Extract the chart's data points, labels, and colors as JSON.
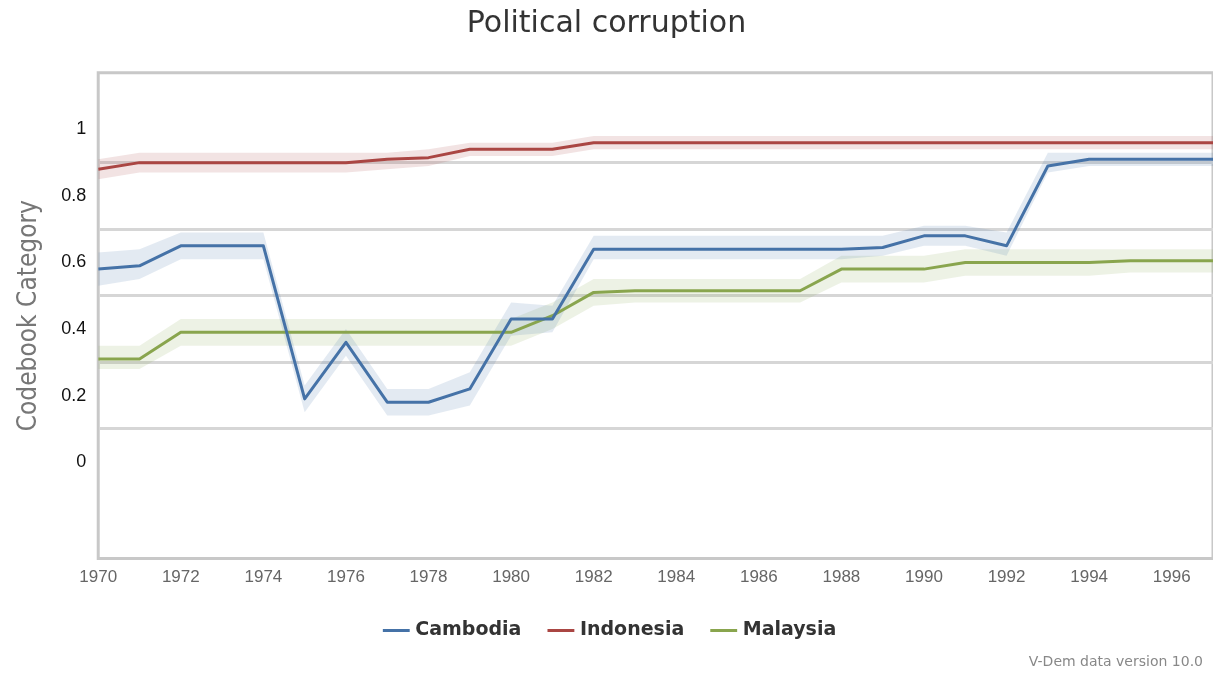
{
  "chart_data": {
    "type": "line",
    "title": "Political corruption",
    "ylabel": "Codebook Category",
    "annotations": [
      "V-Dem data version 10.0"
    ],
    "x": [
      1970,
      1971,
      1972,
      1973,
      1974,
      1975,
      1976,
      1977,
      1978,
      1979,
      1980,
      1981,
      1982,
      1983,
      1984,
      1985,
      1986,
      1987,
      1988,
      1989,
      1990,
      1991,
      1992,
      1993,
      1994,
      1995,
      1996,
      1997
    ],
    "xlim": [
      1970,
      1997
    ],
    "xticks": [
      1970,
      1972,
      1974,
      1976,
      1978,
      1980,
      1982,
      1984,
      1986,
      1988,
      1990,
      1992,
      1994,
      1996
    ],
    "ylim": [
      -0.29,
      1.17
    ],
    "yticks": [
      0,
      {
        "value": 0.1,
        "label": null
      },
      0.2,
      {
        "value": 0.3,
        "label": null
      },
      0.4,
      {
        "value": 0.5,
        "label": null
      },
      0.6,
      {
        "value": 0.7,
        "label": null
      },
      0.8,
      {
        "value": 0.9,
        "label": null
      },
      1
    ],
    "grid": "y",
    "legend": "bottom",
    "marker": "none",
    "line_style": "solid",
    "series": [
      {
        "name": "Cambodia",
        "color": "#4572a7",
        "values": [
          0.58,
          0.59,
          0.65,
          0.65,
          0.65,
          0.19,
          0.36,
          0.18,
          0.18,
          0.22,
          0.43,
          0.43,
          0.64,
          0.64,
          0.64,
          0.64,
          0.64,
          0.64,
          0.64,
          0.645,
          0.68,
          0.68,
          0.65,
          0.89,
          0.91,
          0.91,
          0.91,
          0.91
        ],
        "lower": [
          0.53,
          0.55,
          0.61,
          0.61,
          0.61,
          0.15,
          0.32,
          0.14,
          0.14,
          0.17,
          0.38,
          0.39,
          0.61,
          0.61,
          0.61,
          0.61,
          0.61,
          0.61,
          0.61,
          0.62,
          0.65,
          0.65,
          0.62,
          0.87,
          0.89,
          0.89,
          0.89,
          0.89
        ],
        "upper": [
          0.63,
          0.64,
          0.69,
          0.69,
          0.69,
          0.23,
          0.4,
          0.22,
          0.22,
          0.27,
          0.48,
          0.47,
          0.68,
          0.68,
          0.68,
          0.68,
          0.68,
          0.68,
          0.68,
          0.68,
          0.71,
          0.71,
          0.69,
          0.93,
          0.93,
          0.93,
          0.93,
          0.93
        ]
      },
      {
        "name": "Indonesia",
        "color": "#aa4643",
        "values": [
          0.88,
          0.9,
          0.9,
          0.9,
          0.9,
          0.9,
          0.9,
          0.91,
          0.915,
          0.94,
          0.94,
          0.94,
          0.96,
          0.96,
          0.96,
          0.96,
          0.96,
          0.96,
          0.96,
          0.96,
          0.96,
          0.96,
          0.96,
          0.96,
          0.96,
          0.96,
          0.96,
          0.96
        ],
        "lower": [
          0.85,
          0.87,
          0.87,
          0.87,
          0.87,
          0.87,
          0.87,
          0.88,
          0.89,
          0.92,
          0.92,
          0.92,
          0.94,
          0.94,
          0.94,
          0.94,
          0.94,
          0.94,
          0.94,
          0.94,
          0.94,
          0.94,
          0.94,
          0.94,
          0.94,
          0.94,
          0.94,
          0.94
        ],
        "upper": [
          0.91,
          0.93,
          0.93,
          0.93,
          0.93,
          0.93,
          0.93,
          0.93,
          0.94,
          0.96,
          0.96,
          0.96,
          0.98,
          0.98,
          0.98,
          0.98,
          0.98,
          0.98,
          0.98,
          0.98,
          0.98,
          0.98,
          0.98,
          0.98,
          0.98,
          0.98,
          0.98,
          0.98
        ]
      },
      {
        "name": "Malaysia",
        "color": "#89a54e",
        "values": [
          0.31,
          0.31,
          0.39,
          0.39,
          0.39,
          0.39,
          0.39,
          0.39,
          0.39,
          0.39,
          0.39,
          0.44,
          0.51,
          0.515,
          0.515,
          0.515,
          0.515,
          0.515,
          0.58,
          0.58,
          0.58,
          0.6,
          0.6,
          0.6,
          0.6,
          0.605,
          0.605,
          0.605
        ],
        "lower": [
          0.28,
          0.28,
          0.35,
          0.35,
          0.35,
          0.35,
          0.35,
          0.35,
          0.35,
          0.35,
          0.35,
          0.4,
          0.47,
          0.48,
          0.48,
          0.48,
          0.48,
          0.48,
          0.54,
          0.54,
          0.54,
          0.56,
          0.56,
          0.56,
          0.56,
          0.57,
          0.57,
          0.57
        ],
        "upper": [
          0.35,
          0.35,
          0.43,
          0.43,
          0.43,
          0.43,
          0.43,
          0.43,
          0.43,
          0.43,
          0.43,
          0.48,
          0.55,
          0.55,
          0.55,
          0.55,
          0.55,
          0.55,
          0.62,
          0.62,
          0.62,
          0.64,
          0.64,
          0.64,
          0.64,
          0.64,
          0.64,
          0.64
        ]
      }
    ]
  }
}
